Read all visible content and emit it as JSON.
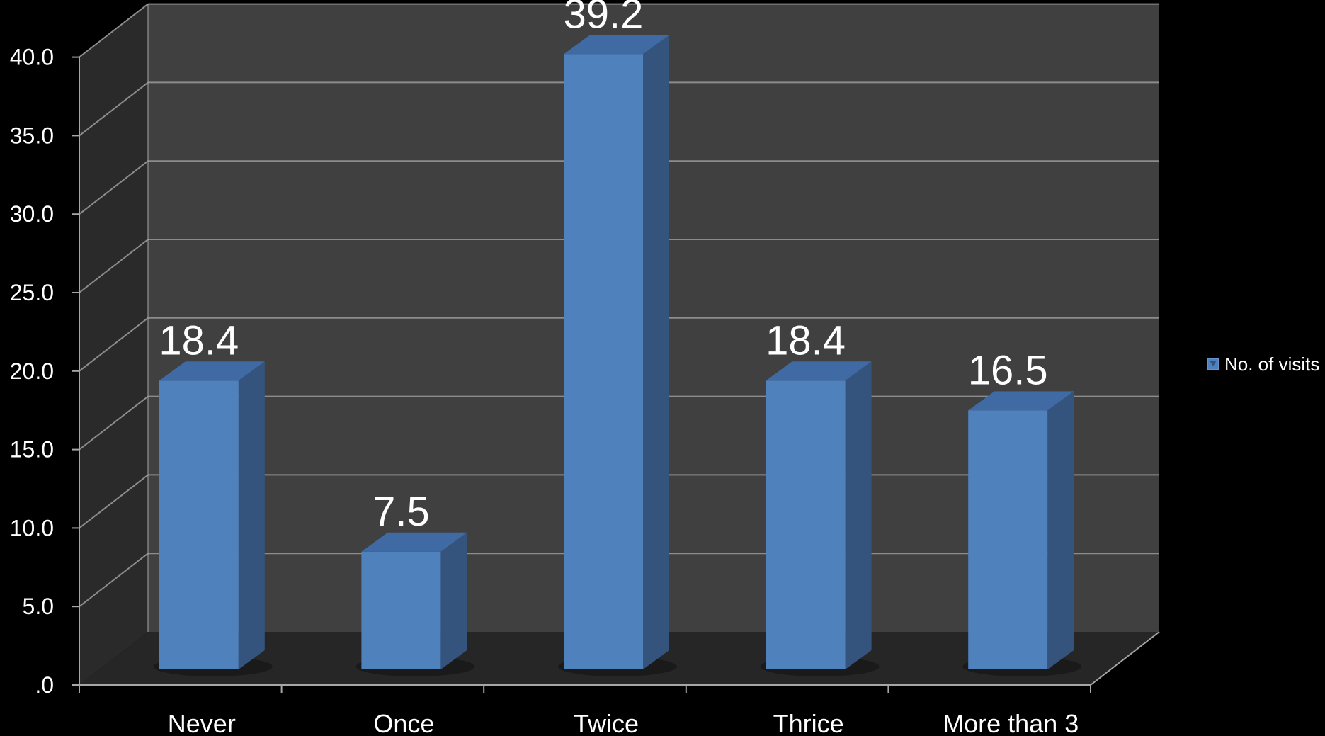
{
  "chart_data": {
    "type": "bar",
    "style": "3d-column",
    "title": "",
    "xlabel": "",
    "ylabel": "",
    "categories": [
      "Never",
      "Once",
      "Twice",
      "Thrice",
      "More than 3"
    ],
    "series": [
      {
        "name": "No. of visits",
        "values": [
          18.4,
          7.5,
          39.2,
          18.4,
          16.5
        ],
        "value_labels": [
          "18.4",
          "7.5",
          "39.2",
          "18.4",
          "16.5"
        ]
      }
    ],
    "ylim": [
      0,
      40
    ],
    "y_ticks": [
      0,
      5,
      10,
      15,
      20,
      25,
      30,
      35,
      40
    ],
    "y_tick_labels": [
      ".0",
      "5.0",
      "10.0",
      "15.0",
      "20.0",
      "25.0",
      "30.0",
      "35.0",
      "40.0"
    ],
    "grid": true,
    "legend_position": "right",
    "colors": {
      "background": "#000000",
      "back_wall": "#404040",
      "side_wall": "#2a2a2a",
      "floor": "#262626",
      "gridline": "#8c8c8c",
      "axis": "#a6a6a6",
      "bar_front": "#4f81bd",
      "bar_side": "#34547e",
      "bar_top": "#3f6aa3",
      "text": "#ffffff"
    }
  }
}
